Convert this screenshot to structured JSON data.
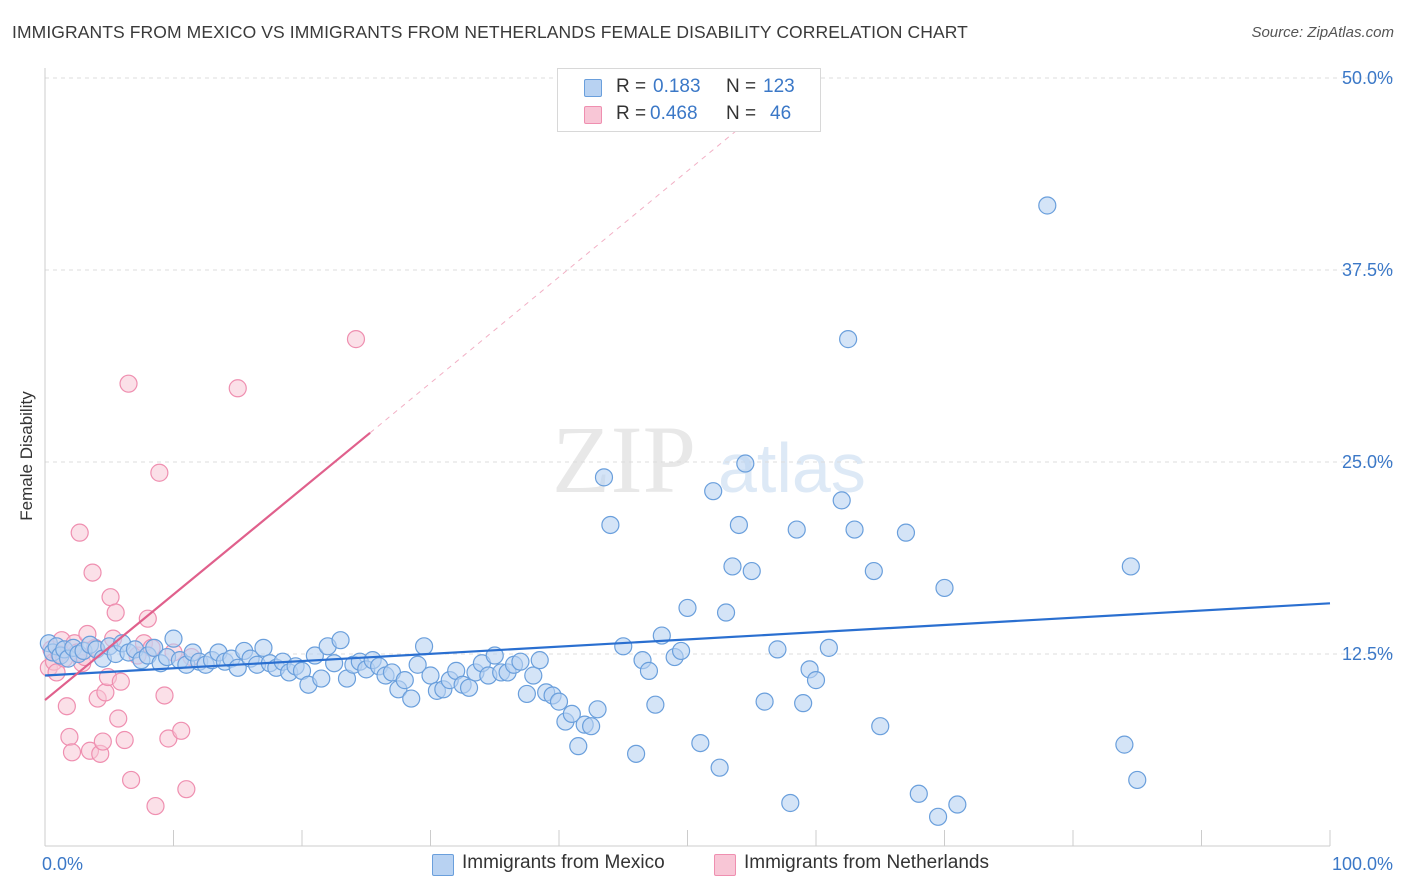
{
  "title": "IMMIGRANTS FROM MEXICO VS IMMIGRANTS FROM NETHERLANDS FEMALE DISABILITY CORRELATION CHART",
  "source": "Source: ZipAtlas.com",
  "watermark": {
    "zip": "ZIP",
    "atlas": "atlas"
  },
  "legend": {
    "mexico": {
      "r_label": "R =",
      "r_value": "0.183",
      "n_label": "N =",
      "n_value": "123"
    },
    "netherlands": {
      "r_label": "R =",
      "r_value": "0.468",
      "n_label": "N =",
      "n_value": "46"
    }
  },
  "colors": {
    "mexico_fill": "#b8d2f2",
    "mexico_stroke": "#6a9fdc",
    "mexico_line": "#2a6fd0",
    "netherlands_fill": "#f8c6d6",
    "netherlands_stroke": "#ef8fb0",
    "netherlands_line": "#e0608c",
    "tick_text": "#3b78c7",
    "grid": "#dddddd"
  },
  "chart_data": {
    "type": "scatter",
    "title": "IMMIGRANTS FROM MEXICO VS IMMIGRANTS FROM NETHERLANDS FEMALE DISABILITY CORRELATION CHART",
    "xlabel": "",
    "ylabel": "Female Disability",
    "xlim": [
      0,
      100
    ],
    "ylim": [
      0,
      50
    ],
    "x_tick_labels": [
      "0.0%",
      "100.0%"
    ],
    "y_tick_labels": [
      "12.5%",
      "25.0%",
      "37.5%",
      "50.0%"
    ],
    "y_ticks": [
      12.5,
      25.0,
      37.5,
      50.0
    ],
    "grid": true,
    "series": [
      {
        "name": "Immigrants from Mexico",
        "r": 0.183,
        "n": 123,
        "trend": {
          "x": [
            0,
            100
          ],
          "y": [
            11.1,
            15.8
          ]
        },
        "points": [
          [
            0.3,
            13.2
          ],
          [
            0.6,
            12.6
          ],
          [
            0.9,
            13.0
          ],
          [
            1.2,
            12.4
          ],
          [
            1.5,
            12.8
          ],
          [
            1.8,
            12.2
          ],
          [
            2.2,
            12.9
          ],
          [
            2.6,
            12.5
          ],
          [
            3.0,
            12.7
          ],
          [
            3.5,
            13.1
          ],
          [
            4.0,
            12.8
          ],
          [
            4.5,
            12.2
          ],
          [
            5.0,
            13.0
          ],
          [
            5.5,
            12.5
          ],
          [
            6.0,
            13.2
          ],
          [
            6.5,
            12.6
          ],
          [
            7.0,
            12.8
          ],
          [
            7.5,
            12.1
          ],
          [
            8.0,
            12.4
          ],
          [
            8.5,
            12.9
          ],
          [
            9.0,
            11.9
          ],
          [
            9.5,
            12.3
          ],
          [
            10.0,
            13.5
          ],
          [
            10.5,
            12.1
          ],
          [
            11.0,
            11.8
          ],
          [
            11.5,
            12.6
          ],
          [
            12.0,
            12.0
          ],
          [
            12.5,
            11.8
          ],
          [
            13.0,
            12.1
          ],
          [
            13.5,
            12.6
          ],
          [
            14.0,
            12.0
          ],
          [
            14.5,
            12.2
          ],
          [
            15.0,
            11.6
          ],
          [
            15.5,
            12.7
          ],
          [
            16.0,
            12.2
          ],
          [
            16.5,
            11.8
          ],
          [
            17.0,
            12.9
          ],
          [
            17.5,
            11.9
          ],
          [
            18.0,
            11.6
          ],
          [
            18.5,
            12.0
          ],
          [
            19.0,
            11.3
          ],
          [
            19.5,
            11.7
          ],
          [
            20.0,
            11.4
          ],
          [
            20.5,
            10.5
          ],
          [
            21.0,
            12.4
          ],
          [
            21.5,
            10.9
          ],
          [
            22.0,
            13.0
          ],
          [
            22.5,
            11.9
          ],
          [
            23.0,
            13.4
          ],
          [
            23.5,
            10.9
          ],
          [
            24.0,
            11.8
          ],
          [
            24.5,
            12.0
          ],
          [
            25.0,
            11.5
          ],
          [
            25.5,
            12.1
          ],
          [
            26.0,
            11.7
          ],
          [
            26.5,
            11.1
          ],
          [
            27.0,
            11.3
          ],
          [
            27.5,
            10.2
          ],
          [
            28.0,
            10.8
          ],
          [
            28.5,
            9.6
          ],
          [
            29.0,
            11.8
          ],
          [
            29.5,
            13.0
          ],
          [
            30.0,
            11.1
          ],
          [
            30.5,
            10.1
          ],
          [
            31.0,
            10.2
          ],
          [
            31.5,
            10.8
          ],
          [
            32.0,
            11.4
          ],
          [
            32.5,
            10.5
          ],
          [
            33.0,
            10.3
          ],
          [
            33.5,
            11.3
          ],
          [
            34.0,
            11.9
          ],
          [
            34.5,
            11.1
          ],
          [
            35.0,
            12.4
          ],
          [
            35.5,
            11.3
          ],
          [
            36.0,
            11.3
          ],
          [
            36.5,
            11.8
          ],
          [
            37.0,
            12.0
          ],
          [
            37.5,
            9.9
          ],
          [
            38.0,
            11.1
          ],
          [
            38.5,
            12.1
          ],
          [
            39.0,
            10.0
          ],
          [
            39.5,
            9.8
          ],
          [
            40.0,
            9.4
          ],
          [
            40.5,
            8.1
          ],
          [
            41.0,
            8.6
          ],
          [
            41.5,
            6.5
          ],
          [
            42.0,
            7.9
          ],
          [
            42.5,
            7.8
          ],
          [
            43.0,
            8.9
          ],
          [
            43.5,
            24.0
          ],
          [
            44.0,
            20.9
          ],
          [
            45.0,
            13.0
          ],
          [
            46.0,
            6.0
          ],
          [
            46.5,
            12.1
          ],
          [
            47.0,
            11.4
          ],
          [
            47.5,
            9.2
          ],
          [
            48.0,
            13.7
          ],
          [
            49.0,
            12.3
          ],
          [
            49.5,
            12.7
          ],
          [
            50.0,
            15.5
          ],
          [
            51.0,
            6.7
          ],
          [
            52.0,
            23.1
          ],
          [
            52.5,
            5.1
          ],
          [
            53.0,
            15.2
          ],
          [
            53.5,
            18.2
          ],
          [
            54.0,
            20.9
          ],
          [
            54.5,
            24.9
          ],
          [
            55.0,
            17.9
          ],
          [
            56.0,
            9.4
          ],
          [
            57.0,
            12.8
          ],
          [
            58.0,
            2.8
          ],
          [
            58.5,
            20.6
          ],
          [
            59.0,
            9.3
          ],
          [
            59.5,
            11.5
          ],
          [
            60.0,
            10.8
          ],
          [
            61.0,
            12.9
          ],
          [
            62.0,
            22.5
          ],
          [
            62.5,
            33.0
          ],
          [
            63.0,
            20.6
          ],
          [
            64.5,
            17.9
          ],
          [
            65.0,
            7.8
          ],
          [
            67.0,
            20.4
          ],
          [
            68.0,
            3.4
          ],
          [
            69.5,
            1.9
          ],
          [
            70.0,
            16.8
          ],
          [
            71.0,
            2.7
          ],
          [
            78.0,
            41.7
          ],
          [
            84.0,
            6.6
          ],
          [
            84.5,
            18.2
          ],
          [
            85.0,
            4.3
          ]
        ]
      },
      {
        "name": "Immigrants from Netherlands",
        "r": 0.468,
        "n": 46,
        "trend": {
          "x": [
            0,
            25.3
          ],
          "y": [
            9.5,
            26.9
          ]
        },
        "trend_extension": {
          "x": [
            25.3,
            55
          ],
          "y": [
            26.9,
            47.4
          ]
        },
        "points": [
          [
            0.3,
            11.6
          ],
          [
            0.5,
            12.8
          ],
          [
            0.7,
            12.0
          ],
          [
            0.9,
            11.3
          ],
          [
            1.1,
            12.5
          ],
          [
            1.3,
            13.4
          ],
          [
            1.5,
            12.2
          ],
          [
            1.7,
            9.1
          ],
          [
            1.9,
            7.1
          ],
          [
            2.1,
            6.1
          ],
          [
            2.3,
            13.2
          ],
          [
            2.5,
            12.6
          ],
          [
            2.7,
            20.4
          ],
          [
            2.9,
            11.9
          ],
          [
            3.1,
            12.3
          ],
          [
            3.3,
            13.8
          ],
          [
            3.5,
            6.2
          ],
          [
            3.7,
            17.8
          ],
          [
            3.9,
            12.9
          ],
          [
            4.1,
            9.6
          ],
          [
            4.3,
            6.0
          ],
          [
            4.5,
            6.8
          ],
          [
            4.7,
            10.0
          ],
          [
            4.9,
            11.0
          ],
          [
            5.1,
            16.2
          ],
          [
            5.3,
            13.5
          ],
          [
            5.5,
            15.2
          ],
          [
            5.7,
            8.3
          ],
          [
            5.9,
            10.7
          ],
          [
            6.2,
            6.9
          ],
          [
            6.5,
            30.1
          ],
          [
            6.7,
            4.3
          ],
          [
            7.2,
            12.4
          ],
          [
            7.7,
            13.2
          ],
          [
            8.0,
            14.8
          ],
          [
            8.3,
            12.9
          ],
          [
            8.6,
            2.6
          ],
          [
            8.9,
            24.3
          ],
          [
            9.3,
            9.8
          ],
          [
            9.6,
            7.0
          ],
          [
            10.0,
            12.6
          ],
          [
            10.6,
            7.5
          ],
          [
            11.0,
            3.7
          ],
          [
            11.4,
            12.3
          ],
          [
            15.0,
            29.8
          ],
          [
            24.2,
            33.0
          ]
        ]
      }
    ]
  },
  "bottom_legend": {
    "mexico_label": "Immigrants from Mexico",
    "netherlands_label": "Immigrants from Netherlands"
  }
}
